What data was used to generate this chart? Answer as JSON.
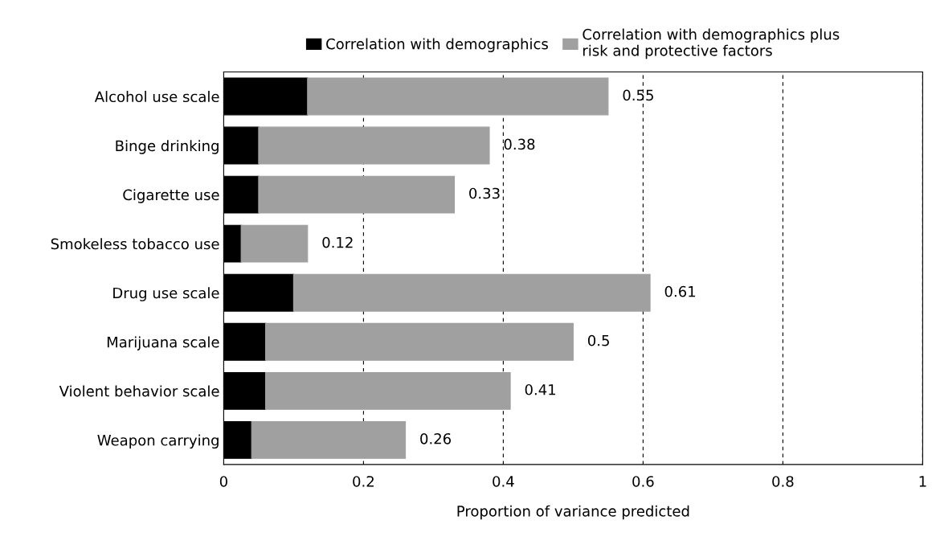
{
  "chart_data": {
    "type": "bar",
    "orientation": "horizontal",
    "stacked": true,
    "xlabel": "Proportion of variance predicted",
    "categories": [
      "Alcohol use scale",
      "Binge drinking",
      "Cigarette use",
      "Smokeless tobacco use",
      "Drug use scale",
      "Marijuana scale",
      "Violent behavior scale",
      "Weapon carrying"
    ],
    "series": [
      {
        "name": "Correlation with demographics",
        "color": "#000000",
        "values": [
          0.12,
          0.05,
          0.05,
          0.025,
          0.1,
          0.06,
          0.06,
          0.04
        ]
      },
      {
        "name": "Correlation with demographics plus\nrisk and protective factors",
        "color": "#a0a0a0",
        "values": [
          0.43,
          0.33,
          0.28,
          0.095,
          0.51,
          0.44,
          0.35,
          0.22
        ]
      }
    ],
    "totals": [
      "0.55",
      "0.38",
      "0.33",
      "0.12",
      "0.61",
      "0.5",
      "0.41",
      "0.26"
    ],
    "xlim": [
      0,
      1
    ],
    "xticks": [
      0,
      0.2,
      0.4,
      0.6,
      0.8,
      1
    ],
    "grid": "x",
    "line_style": "dashed",
    "legend": "top"
  }
}
